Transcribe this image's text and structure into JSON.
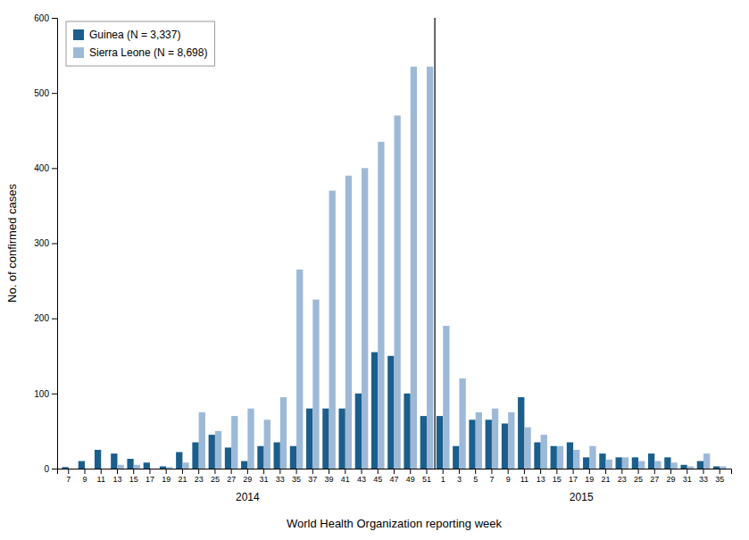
{
  "chart_data": {
    "type": "bar",
    "xlabel": "World Health Organization reporting week",
    "ylabel": "No. of confirmed cases",
    "categories": [
      "7",
      "9",
      "11",
      "13",
      "15",
      "17",
      "19",
      "21",
      "23",
      "25",
      "27",
      "29",
      "31",
      "33",
      "35",
      "37",
      "39",
      "41",
      "43",
      "45",
      "47",
      "49",
      "51",
      "1",
      "3",
      "5",
      "7",
      "9",
      "11",
      "13",
      "15",
      "17",
      "19",
      "21",
      "23",
      "25",
      "27",
      "29",
      "31",
      "33",
      "35"
    ],
    "series": [
      {
        "name": "Guinea (N = 3,337)",
        "color": "#1B5E8B",
        "values": [
          2,
          10,
          25,
          20,
          13,
          8,
          3,
          22,
          35,
          45,
          28,
          10,
          30,
          35,
          30,
          80,
          80,
          80,
          100,
          155,
          150,
          100,
          70,
          70,
          30,
          65,
          65,
          60,
          95,
          35,
          30,
          35,
          15,
          20,
          15,
          15,
          20,
          15,
          5,
          10,
          3
        ]
      },
      {
        "name": "Sierra Leone (N = 8,698)",
        "color": "#9DB9D8",
        "values": [
          0,
          0,
          0,
          5,
          5,
          0,
          2,
          8,
          75,
          50,
          70,
          80,
          65,
          95,
          265,
          225,
          370,
          390,
          400,
          435,
          470,
          535,
          535,
          190,
          120,
          75,
          80,
          75,
          55,
          45,
          30,
          25,
          30,
          12,
          15,
          10,
          10,
          8,
          3,
          20,
          3
        ]
      }
    ],
    "annotations": [
      {
        "text": "2014"
      },
      {
        "text": "2015"
      }
    ],
    "ylim": [
      0,
      600
    ],
    "yticks": [
      0,
      100,
      200,
      300,
      400,
      500,
      600
    ],
    "legend": "upper left",
    "grid": false
  }
}
